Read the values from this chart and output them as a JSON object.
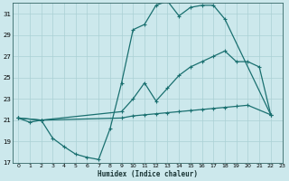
{
  "xlabel": "Humidex (Indice chaleur)",
  "bg_color": "#cce8ec",
  "grid_color": "#aad0d5",
  "line_color": "#1a7070",
  "xlim": [
    -0.5,
    23
  ],
  "ylim": [
    17,
    32
  ],
  "yticks": [
    17,
    19,
    21,
    23,
    25,
    27,
    29,
    31
  ],
  "xticks": [
    0,
    1,
    2,
    3,
    4,
    5,
    6,
    7,
    8,
    9,
    10,
    11,
    12,
    13,
    14,
    15,
    16,
    17,
    18,
    19,
    20,
    21,
    22,
    23
  ],
  "series": [
    {
      "x": [
        0,
        1,
        2,
        3,
        4,
        5,
        6,
        7,
        8,
        9,
        10,
        11,
        12,
        13,
        14,
        15,
        16,
        17,
        18,
        22
      ],
      "y": [
        21.2,
        20.8,
        21.0,
        19.3,
        18.5,
        17.8,
        17.5,
        17.3,
        20.2,
        24.5,
        29.5,
        30.0,
        31.8,
        32.2,
        30.8,
        31.6,
        31.8,
        31.8,
        30.5,
        21.5
      ]
    },
    {
      "x": [
        0,
        2,
        9,
        10,
        11,
        12,
        13,
        14,
        15,
        16,
        17,
        18,
        19,
        20,
        21,
        22
      ],
      "y": [
        21.2,
        21.0,
        21.8,
        23.0,
        24.5,
        22.8,
        24.0,
        25.2,
        26.0,
        26.5,
        27.0,
        27.5,
        26.5,
        26.5,
        26.0,
        21.5
      ]
    },
    {
      "x": [
        0,
        2,
        9,
        10,
        11,
        12,
        13,
        14,
        15,
        16,
        17,
        18,
        19,
        20,
        22
      ],
      "y": [
        21.2,
        21.0,
        21.2,
        21.4,
        21.5,
        21.6,
        21.7,
        21.8,
        21.9,
        22.0,
        22.1,
        22.2,
        22.3,
        22.4,
        21.5
      ]
    }
  ]
}
